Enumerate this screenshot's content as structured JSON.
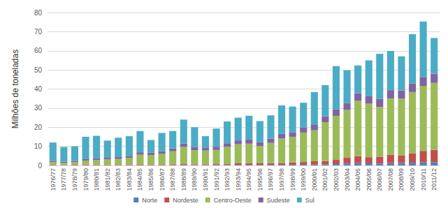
{
  "chart_data": {
    "type": "bar",
    "y_label": "Milhões de toneladas",
    "categories": [
      "1976/77",
      "1977/78",
      "1978/79",
      "1979/80",
      "1980/81",
      "1981/82",
      "1982/83",
      "1983/84",
      "1984/85",
      "1985/86",
      "1986/87",
      "1987/88",
      "1988/89",
      "1989/90",
      "1990/91",
      "1991/92",
      "1992/93",
      "1993/94",
      "1994/95",
      "1995/96",
      "1996/97",
      "1997/98",
      "1998/99",
      "1999/00",
      "2000/01",
      "2001/02",
      "2002/03",
      "2003/04",
      "2004/05",
      "2005/06",
      "2006/07",
      "2007/08",
      "2008/09",
      "2009/10",
      "2010/11",
      "2011/12"
    ],
    "series": [
      {
        "name": "Norte",
        "color": "#4f81bd",
        "values": [
          0.1,
          0.1,
          0.1,
          0.1,
          0.1,
          0.1,
          0.1,
          0.1,
          0.1,
          0.1,
          0.1,
          0.1,
          0.2,
          0.2,
          0.2,
          0.2,
          0.2,
          0.3,
          0.3,
          0.3,
          0.3,
          0.3,
          0.4,
          0.4,
          0.5,
          0.5,
          0.7,
          1.0,
          1.2,
          1.1,
          1.0,
          1.2,
          1.3,
          1.4,
          1.6,
          1.7
        ]
      },
      {
        "name": "Nordeste",
        "color": "#c0504d",
        "values": [
          0.3,
          0.2,
          0.3,
          0.4,
          0.4,
          0.4,
          0.3,
          0.4,
          0.5,
          0.4,
          0.3,
          0.5,
          0.5,
          0.4,
          0.4,
          0.5,
          0.5,
          0.8,
          0.9,
          0.8,
          0.9,
          1.0,
          1.2,
          1.4,
          1.7,
          1.8,
          2.2,
          3.0,
          3.6,
          3.2,
          3.6,
          4.4,
          4.0,
          5.0,
          6.0,
          6.5
        ]
      },
      {
        "name": "Centro-Oeste",
        "color": "#9bbb59",
        "values": [
          1.4,
          1.2,
          1.4,
          2.0,
          2.3,
          2.6,
          3.0,
          3.5,
          5.0,
          5.0,
          5.8,
          6.8,
          9.0,
          7.4,
          7.2,
          7.4,
          9.0,
          10.0,
          10.2,
          9.1,
          10.6,
          12.8,
          13.4,
          15.4,
          16.2,
          20.3,
          23.0,
          25.0,
          29.0,
          28.0,
          26.0,
          29.5,
          29.7,
          32.0,
          34.0,
          35.0
        ]
      },
      {
        "name": "Sudeste",
        "color": "#8064a2",
        "values": [
          0.6,
          0.5,
          0.6,
          0.8,
          0.9,
          0.9,
          1.0,
          1.0,
          1.3,
          1.2,
          1.3,
          1.5,
          1.8,
          1.6,
          1.6,
          1.7,
          1.9,
          2.0,
          2.1,
          2.0,
          2.2,
          2.4,
          2.4,
          2.6,
          2.8,
          3.1,
          3.4,
          3.6,
          4.0,
          3.9,
          4.2,
          4.3,
          4.2,
          4.4,
          4.7,
          4.8
        ]
      },
      {
        "name": "Sul",
        "color": "#4bacc6",
        "values": [
          9.6,
          7.7,
          7.6,
          11.7,
          11.8,
          9.0,
          10.1,
          10.3,
          11.1,
          6.6,
          9.5,
          9.1,
          12.5,
          10.4,
          5.9,
          9.5,
          11.4,
          11.9,
          12.5,
          11.0,
          12.2,
          14.9,
          13.4,
          13.0,
          17.2,
          16.3,
          22.7,
          17.2,
          14.5,
          18.8,
          23.6,
          20.5,
          17.9,
          25.9,
          29.0,
          18.7
        ]
      }
    ],
    "ylim": [
      0,
      80
    ],
    "yticks": [
      0,
      10,
      20,
      30,
      40,
      50,
      60,
      70,
      80
    ],
    "grid": true,
    "legend": "bottom",
    "stacked": true
  }
}
